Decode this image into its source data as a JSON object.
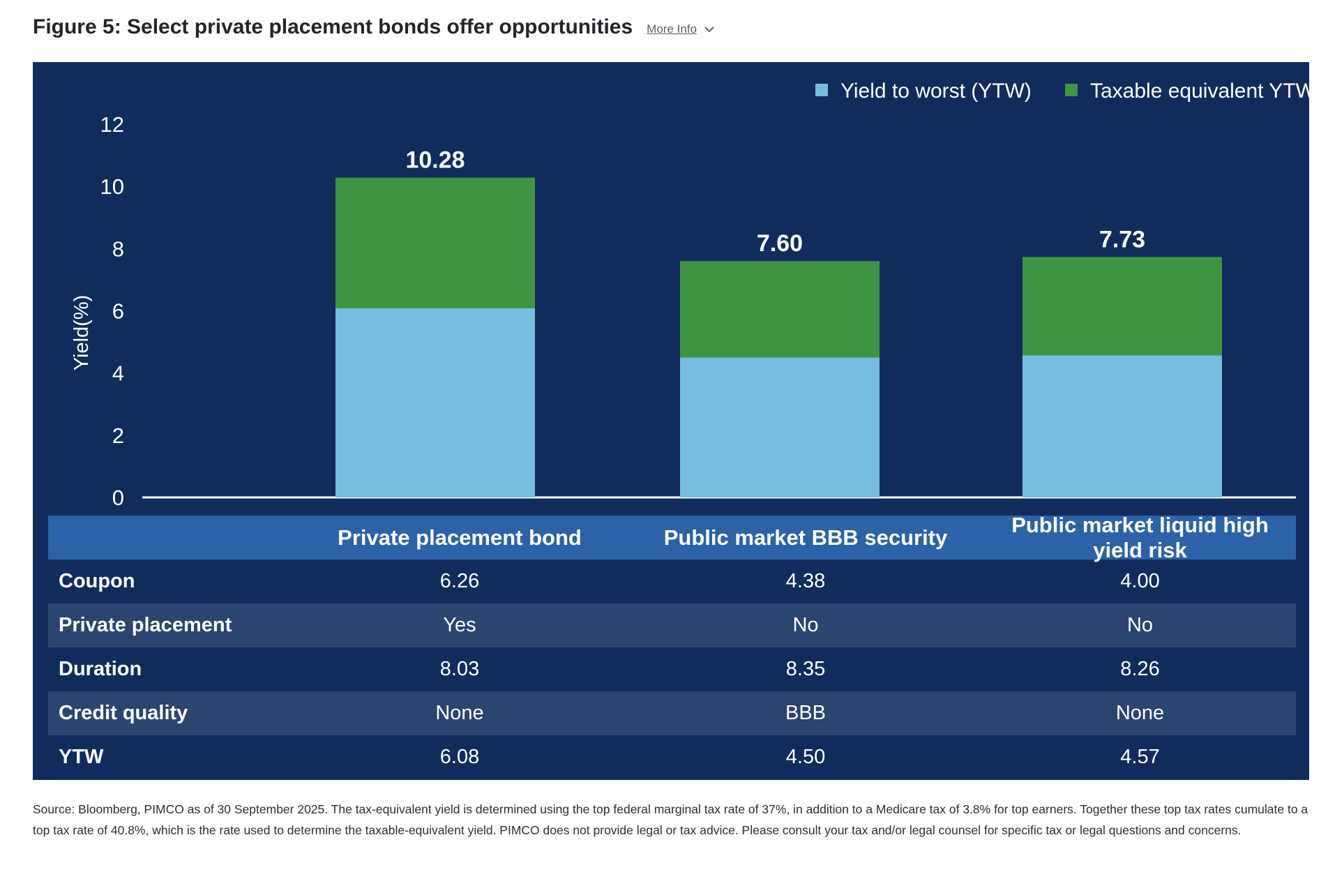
{
  "header": {
    "title": "Figure 5: Select private placement bonds offer opportunities",
    "more_info": "More Info"
  },
  "chart_data": {
    "type": "bar",
    "stacked": true,
    "categories": [
      "Private placement bond",
      "Public market BBB security",
      "Public market liquid high yield risk"
    ],
    "series": [
      {
        "name": "Yield to worst (YTW)",
        "values": [
          6.08,
          4.5,
          4.57
        ],
        "color": "#77bde0"
      },
      {
        "name": "Taxable equivalent YTW",
        "values": [
          4.2,
          3.1,
          3.16
        ],
        "color": "#3f9444"
      }
    ],
    "totals": [
      "10.28",
      "7.60",
      "7.73"
    ],
    "ylabel": "Yield(%)",
    "ylim": [
      0,
      12
    ],
    "yticks": [
      0,
      2,
      4,
      6,
      8,
      10,
      12
    ],
    "legend_position": "top-right",
    "grid": false
  },
  "table": {
    "columns": [
      "",
      "Private placement bond",
      "Public market BBB security",
      "Public market liquid high yield risk"
    ],
    "rows": [
      {
        "label": "Coupon",
        "values": [
          "6.26",
          "4.38",
          "4.00"
        ]
      },
      {
        "label": "Private placement",
        "values": [
          "Yes",
          "No",
          "No"
        ]
      },
      {
        "label": "Duration",
        "values": [
          "8.03",
          "8.35",
          "8.26"
        ]
      },
      {
        "label": "Credit quality",
        "values": [
          "None",
          "BBB",
          "None"
        ]
      },
      {
        "label": "YTW",
        "values": [
          "6.08",
          "4.50",
          "4.57"
        ]
      }
    ]
  },
  "source": "Source: Bloomberg, PIMCO as of 30 September 2025. The tax-equivalent yield is determined using the top federal marginal tax rate of 37%, in addition to a Medicare tax of 3.8% for top earners. Together these top tax rates cumulate to a top tax rate of 40.8%, which is the rate used to determine the taxable-equivalent yield. PIMCO does not provide legal or tax advice. Please consult your tax and/or legal counsel for specific tax or legal questions and concerns."
}
